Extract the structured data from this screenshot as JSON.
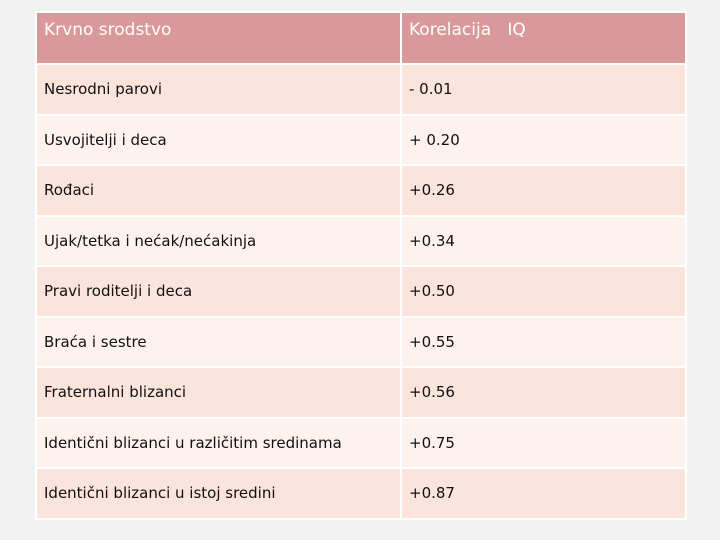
{
  "table": {
    "headers": [
      "Krvno srodstvo",
      "Korelacija   IQ"
    ],
    "rows": [
      [
        "Nesrodni parovi",
        "- 0.01"
      ],
      [
        "Usvojitelji i deca",
        "+ 0.20"
      ],
      [
        "Rođaci",
        "+0.26"
      ],
      [
        "Ujak/tetka i nećak/nećakinja",
        "+0.34"
      ],
      [
        "Pravi roditelji i deca",
        "+0.50"
      ],
      [
        "Braća i sestre",
        "+0.55"
      ],
      [
        "Fraternalni blizanci",
        "+0.56"
      ],
      [
        "Identični blizanci u različitim sredinama",
        "+0.75"
      ],
      [
        "Identični blizanci u istoj sredini",
        "+0.87"
      ]
    ]
  },
  "colors": {
    "header_bg": "#d9989a",
    "row_odd_bg": "#fbe4dc",
    "row_even_bg": "#fdf2ee"
  }
}
